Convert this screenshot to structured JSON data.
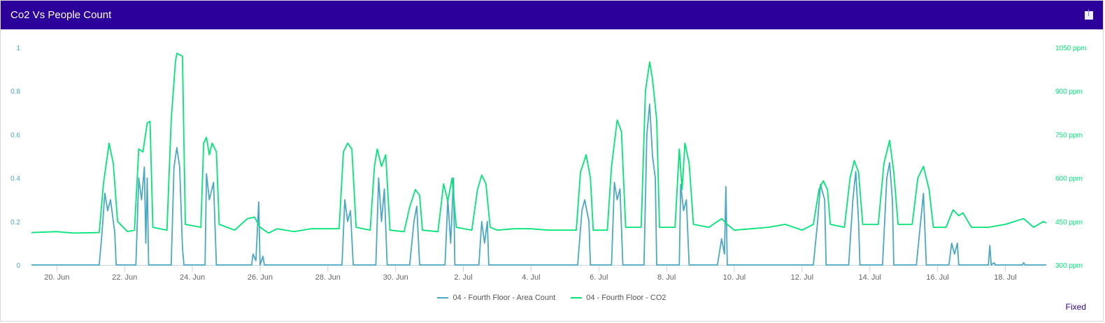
{
  "header": {
    "title": "Co2 Vs People Count",
    "download_icon": "download-icon"
  },
  "footer": {
    "fixed_label": "Fixed"
  },
  "colors": {
    "header": "#2c009b",
    "count": "#4aa8c4",
    "co2": "#00e676",
    "left_axis": "#4aa8c4",
    "right_axis": "#00e676"
  },
  "chart_data": {
    "type": "line",
    "x_range": [
      "06-19 06:00",
      "07-19 05:00"
    ],
    "x_ticks": [
      "20. Jun",
      "22. Jun",
      "24. Jun",
      "26. Jun",
      "28. Jun",
      "30. Jun",
      "2. Jul",
      "4. Jul",
      "6. Jul",
      "8. Jul",
      "10. Jul",
      "12. Jul",
      "14. Jul",
      "16. Jul",
      "18. Jul"
    ],
    "x_tick_dates": [
      "06-20 00:00",
      "06-22 00:00",
      "06-24 00:00",
      "06-26 00:00",
      "06-28 00:00",
      "06-30 00:00",
      "07-02 00:00",
      "07-04 00:00",
      "07-06 00:00",
      "07-08 00:00",
      "07-10 00:00",
      "07-12 00:00",
      "07-14 00:00",
      "07-16 00:00",
      "07-18 00:00"
    ],
    "y_left": {
      "range": [
        0,
        1
      ],
      "ticks": [
        "0",
        "0.2",
        "0.4",
        "0.6",
        "0.8",
        "1"
      ]
    },
    "y_right": {
      "range": [
        300,
        1050
      ],
      "ticks": [
        "300 ppm",
        "450 ppm",
        "600 ppm",
        "750 ppm",
        "900 ppm",
        "1050 ppm"
      ]
    },
    "grid": false,
    "legend_placement": "bottom",
    "series": [
      {
        "name": "04 - Fourth Floor - Area Count",
        "axis": "left",
        "points": [
          [
            "06-19 06:00",
            0
          ],
          [
            "06-21 06:00",
            0
          ],
          [
            "06-21 08:00",
            0.15
          ],
          [
            "06-21 10:00",
            0.33
          ],
          [
            "06-21 12:00",
            0.25
          ],
          [
            "06-21 14:00",
            0.3
          ],
          [
            "06-21 17:00",
            0.15
          ],
          [
            "06-21 18:00",
            0
          ],
          [
            "06-22 08:00",
            0
          ],
          [
            "06-22 10:00",
            0.4
          ],
          [
            "06-22 12:00",
            0.3
          ],
          [
            "06-22 14:00",
            0.45
          ],
          [
            "06-22 15:00",
            0.1
          ],
          [
            "06-22 16:00",
            0.4
          ],
          [
            "06-22 17:00",
            0
          ],
          [
            "06-23 09:00",
            0
          ],
          [
            "06-23 11:00",
            0.45
          ],
          [
            "06-23 13:00",
            0.54
          ],
          [
            "06-23 15:00",
            0.45
          ],
          [
            "06-23 17:00",
            0.08
          ],
          [
            "06-23 18:00",
            0
          ],
          [
            "06-24 09:00",
            0
          ],
          [
            "06-24 10:00",
            0.42
          ],
          [
            "06-24 12:00",
            0.3
          ],
          [
            "06-24 15:00",
            0.38
          ],
          [
            "06-24 17:00",
            0
          ],
          [
            "06-25 18:00",
            0
          ],
          [
            "06-25 19:00",
            0.05
          ],
          [
            "06-25 21:00",
            0.02
          ],
          [
            "06-25 23:00",
            0.29
          ],
          [
            "06-26 00:00",
            0
          ],
          [
            "06-26 02:00",
            0.04
          ],
          [
            "06-26 03:00",
            0
          ],
          [
            "06-28 10:00",
            0
          ],
          [
            "06-28 12:00",
            0.3
          ],
          [
            "06-28 14:00",
            0.2
          ],
          [
            "06-28 16:00",
            0.25
          ],
          [
            "06-28 18:00",
            0
          ],
          [
            "06-29 10:00",
            0
          ],
          [
            "06-29 12:00",
            0.4
          ],
          [
            "06-29 14:00",
            0.2
          ],
          [
            "06-29 16:00",
            0.35
          ],
          [
            "06-29 18:00",
            0
          ],
          [
            "06-30 10:00",
            0
          ],
          [
            "06-30 13:00",
            0.2
          ],
          [
            "06-30 15:00",
            0.27
          ],
          [
            "06-30 17:00",
            0
          ],
          [
            "07-01 11:00",
            0
          ],
          [
            "07-01 13:00",
            0.3
          ],
          [
            "07-01 15:00",
            0.1
          ],
          [
            "07-01 17:00",
            0.4
          ],
          [
            "07-01 18:00",
            0
          ],
          [
            "07-02 11:00",
            0
          ],
          [
            "07-02 13:00",
            0.2
          ],
          [
            "07-02 15:00",
            0.1
          ],
          [
            "07-02 17:00",
            0.2
          ],
          [
            "07-02 18:00",
            0
          ],
          [
            "07-05 09:00",
            0
          ],
          [
            "07-05 12:00",
            0.25
          ],
          [
            "07-05 14:00",
            0.3
          ],
          [
            "07-05 17:00",
            0.2
          ],
          [
            "07-05 18:00",
            0
          ],
          [
            "07-06 09:00",
            0
          ],
          [
            "07-06 11:00",
            0.38
          ],
          [
            "07-06 13:00",
            0.3
          ],
          [
            "07-06 15:00",
            0.35
          ],
          [
            "07-06 17:00",
            0
          ],
          [
            "07-07 08:00",
            0
          ],
          [
            "07-07 10:00",
            0.6
          ],
          [
            "07-07 12:00",
            0.74
          ],
          [
            "07-07 14:00",
            0.5
          ],
          [
            "07-07 16:00",
            0.4
          ],
          [
            "07-07 17:00",
            0
          ],
          [
            "07-08 09:00",
            0
          ],
          [
            "07-08 10:00",
            0.37
          ],
          [
            "07-08 12:00",
            0.25
          ],
          [
            "07-08 14:00",
            0.3
          ],
          [
            "07-08 16:00",
            0
          ],
          [
            "07-09 12:00",
            0
          ],
          [
            "07-09 15:00",
            0.12
          ],
          [
            "07-09 17:00",
            0.05
          ],
          [
            "07-09 18:00",
            0.36
          ],
          [
            "07-09 19:00",
            0
          ],
          [
            "07-12 08:00",
            0
          ],
          [
            "07-12 11:00",
            0.2
          ],
          [
            "07-12 13:00",
            0.37
          ],
          [
            "07-12 16:00",
            0.3
          ],
          [
            "07-12 17:00",
            0
          ],
          [
            "07-13 09:00",
            0
          ],
          [
            "07-13 12:00",
            0.3
          ],
          [
            "07-13 14:00",
            0.43
          ],
          [
            "07-13 16:00",
            0.2
          ],
          [
            "07-13 17:00",
            0
          ],
          [
            "07-14 09:00",
            0
          ],
          [
            "07-14 12:00",
            0.4
          ],
          [
            "07-14 14:00",
            0.47
          ],
          [
            "07-14 16:00",
            0.3
          ],
          [
            "07-14 17:00",
            0
          ],
          [
            "07-15 09:00",
            0
          ],
          [
            "07-15 12:00",
            0.2
          ],
          [
            "07-15 14:00",
            0.33
          ],
          [
            "07-15 16:00",
            0
          ],
          [
            "07-16 08:00",
            0
          ],
          [
            "07-16 10:00",
            0.1
          ],
          [
            "07-16 12:00",
            0.05
          ],
          [
            "07-16 14:00",
            0.1
          ],
          [
            "07-16 15:00",
            0
          ],
          [
            "07-17 12:00",
            0
          ],
          [
            "07-17 13:00",
            0.09
          ],
          [
            "07-17 14:00",
            0
          ],
          [
            "07-17 16:00",
            0.01
          ],
          [
            "07-17 17:00",
            0
          ],
          [
            "07-18 12:00",
            0
          ],
          [
            "07-18 13:00",
            0.01
          ],
          [
            "07-18 14:00",
            0
          ],
          [
            "07-19 05:00",
            0
          ]
        ]
      },
      {
        "name": "04 - Fourth Floor - CO2",
        "axis": "right",
        "points": [
          [
            "06-19 06:00",
            412
          ],
          [
            "06-20 00:00",
            415
          ],
          [
            "06-20 12:00",
            410
          ],
          [
            "06-21 06:00",
            412
          ],
          [
            "06-21 09:00",
            580
          ],
          [
            "06-21 13:00",
            720
          ],
          [
            "06-21 16:00",
            650
          ],
          [
            "06-21 19:00",
            450
          ],
          [
            "06-22 02:00",
            415
          ],
          [
            "06-22 07:00",
            420
          ],
          [
            "06-22 10:00",
            700
          ],
          [
            "06-22 13:00",
            690
          ],
          [
            "06-22 16:00",
            790
          ],
          [
            "06-22 18:00",
            795
          ],
          [
            "06-22 20:00",
            430
          ],
          [
            "06-23 06:00",
            420
          ],
          [
            "06-23 09:00",
            800
          ],
          [
            "06-23 12:00",
            1000
          ],
          [
            "06-23 13:00",
            1030
          ],
          [
            "06-23 17:00",
            1020
          ],
          [
            "06-23 19:00",
            440
          ],
          [
            "06-24 06:00",
            430
          ],
          [
            "06-24 08:00",
            720
          ],
          [
            "06-24 10:00",
            740
          ],
          [
            "06-24 12:00",
            680
          ],
          [
            "06-24 14:00",
            720
          ],
          [
            "06-24 17:00",
            690
          ],
          [
            "06-24 19:00",
            440
          ],
          [
            "06-25 06:00",
            420
          ],
          [
            "06-25 15:00",
            460
          ],
          [
            "06-25 20:00",
            465
          ],
          [
            "06-26 00:00",
            430
          ],
          [
            "06-26 06:00",
            410
          ],
          [
            "06-26 12:00",
            425
          ],
          [
            "06-27 00:00",
            415
          ],
          [
            "06-27 12:00",
            425
          ],
          [
            "06-28 00:00",
            425
          ],
          [
            "06-28 08:00",
            425
          ],
          [
            "06-28 11:00",
            690
          ],
          [
            "06-28 14:00",
            720
          ],
          [
            "06-28 17:00",
            700
          ],
          [
            "06-28 20:00",
            430
          ],
          [
            "06-29 06:00",
            420
          ],
          [
            "06-29 09:00",
            640
          ],
          [
            "06-29 11:00",
            700
          ],
          [
            "06-29 14:00",
            640
          ],
          [
            "06-29 17:00",
            680
          ],
          [
            "06-29 20:00",
            420
          ],
          [
            "06-30 06:00",
            415
          ],
          [
            "06-30 10:00",
            500
          ],
          [
            "06-30 14:00",
            560
          ],
          [
            "06-30 17:00",
            540
          ],
          [
            "06-30 19:00",
            420
          ],
          [
            "07-01 06:00",
            415
          ],
          [
            "07-01 10:00",
            580
          ],
          [
            "07-01 13:00",
            520
          ],
          [
            "07-01 16:00",
            600
          ],
          [
            "07-01 19:00",
            430
          ],
          [
            "07-02 06:00",
            420
          ],
          [
            "07-02 10:00",
            560
          ],
          [
            "07-02 13:00",
            610
          ],
          [
            "07-02 16:00",
            580
          ],
          [
            "07-02 19:00",
            430
          ],
          [
            "07-03 00:00",
            420
          ],
          [
            "07-03 12:00",
            425
          ],
          [
            "07-04 00:00",
            425
          ],
          [
            "07-04 12:00",
            420
          ],
          [
            "07-05 00:00",
            420
          ],
          [
            "07-05 08:00",
            420
          ],
          [
            "07-05 11:00",
            620
          ],
          [
            "07-05 15:00",
            680
          ],
          [
            "07-05 18:00",
            600
          ],
          [
            "07-05 20:00",
            420
          ],
          [
            "07-06 06:00",
            420
          ],
          [
            "07-06 09:00",
            640
          ],
          [
            "07-06 13:00",
            800
          ],
          [
            "07-06 16:00",
            760
          ],
          [
            "07-06 19:00",
            430
          ],
          [
            "07-07 06:00",
            430
          ],
          [
            "07-07 09:00",
            900
          ],
          [
            "07-07 12:00",
            1000
          ],
          [
            "07-07 14:00",
            940
          ],
          [
            "07-07 17:00",
            800
          ],
          [
            "07-07 19:00",
            430
          ],
          [
            "07-08 06:00",
            430
          ],
          [
            "07-08 09:00",
            700
          ],
          [
            "07-08 11:00",
            560
          ],
          [
            "07-08 13:00",
            720
          ],
          [
            "07-08 16:00",
            650
          ],
          [
            "07-08 19:00",
            440
          ],
          [
            "07-09 06:00",
            430
          ],
          [
            "07-09 15:00",
            460
          ],
          [
            "07-09 19:00",
            440
          ],
          [
            "07-10 00:00",
            420
          ],
          [
            "07-10 12:00",
            425
          ],
          [
            "07-11 00:00",
            430
          ],
          [
            "07-11 12:00",
            440
          ],
          [
            "07-12 00:00",
            420
          ],
          [
            "07-12 08:00",
            440
          ],
          [
            "07-12 12:00",
            560
          ],
          [
            "07-12 15:00",
            590
          ],
          [
            "07-12 18:00",
            560
          ],
          [
            "07-12 20:00",
            440
          ],
          [
            "07-13 06:00",
            430
          ],
          [
            "07-13 10:00",
            600
          ],
          [
            "07-13 13:00",
            660
          ],
          [
            "07-13 16:00",
            620
          ],
          [
            "07-13 19:00",
            440
          ],
          [
            "07-14 06:00",
            440
          ],
          [
            "07-14 10:00",
            650
          ],
          [
            "07-14 14:00",
            730
          ],
          [
            "07-14 17:00",
            620
          ],
          [
            "07-14 20:00",
            440
          ],
          [
            "07-15 06:00",
            440
          ],
          [
            "07-15 10:00",
            600
          ],
          [
            "07-15 14:00",
            640
          ],
          [
            "07-15 18:00",
            560
          ],
          [
            "07-15 21:00",
            430
          ],
          [
            "07-16 06:00",
            430
          ],
          [
            "07-16 11:00",
            490
          ],
          [
            "07-16 15:00",
            470
          ],
          [
            "07-16 18:00",
            480
          ],
          [
            "07-17 00:00",
            430
          ],
          [
            "07-17 12:00",
            430
          ],
          [
            "07-18 00:00",
            440
          ],
          [
            "07-18 13:00",
            460
          ],
          [
            "07-18 20:00",
            430
          ],
          [
            "07-19 03:00",
            450
          ],
          [
            "07-19 05:00",
            445
          ]
        ]
      }
    ]
  }
}
